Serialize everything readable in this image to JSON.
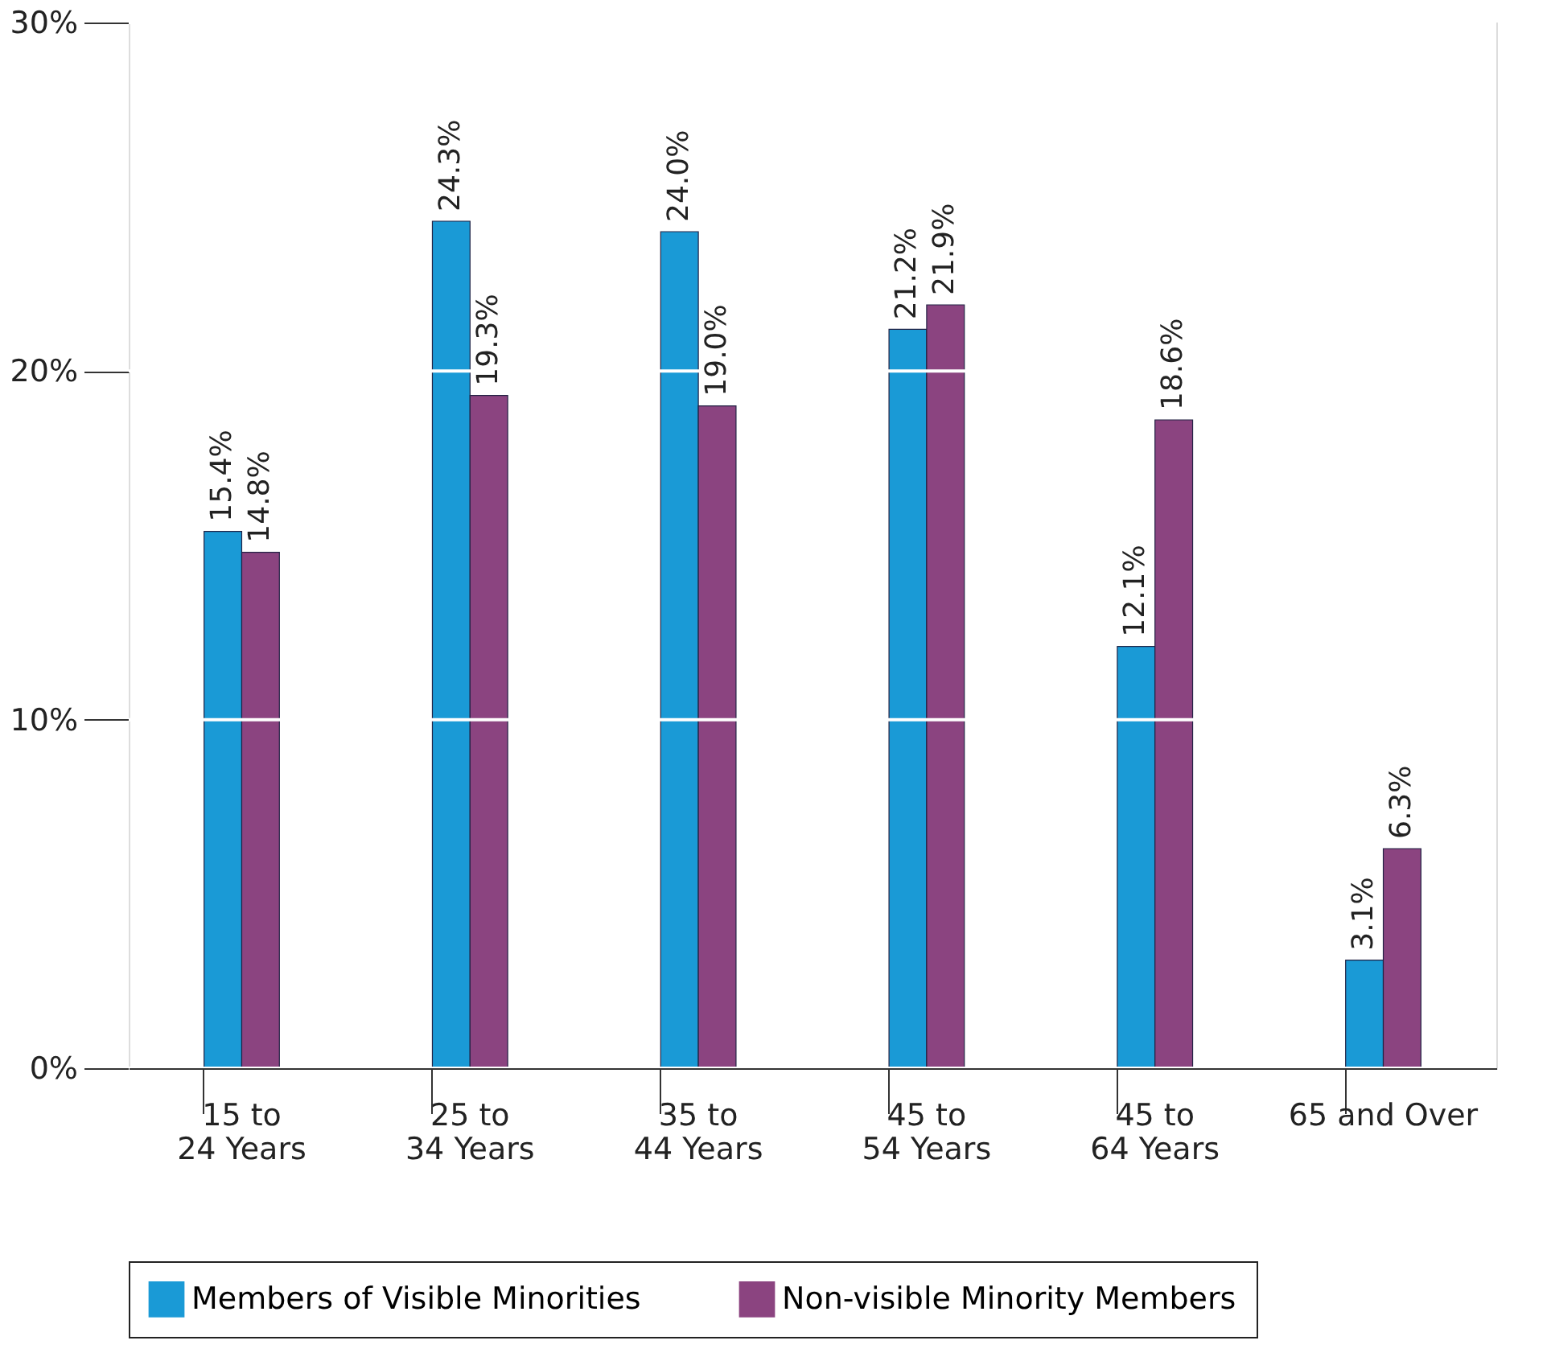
{
  "chart_data": {
    "type": "bar",
    "categories": [
      "15 to\n24 Years",
      "25 to\n34 Years",
      "35 to\n44 Years",
      "45 to\n54 Years",
      "45 to\n64 Years",
      "65 and Over"
    ],
    "series": [
      {
        "name": "Members of Visible Minorities",
        "color": "#1a9ad6",
        "values": [
          15.4,
          24.3,
          24.0,
          21.2,
          12.1,
          3.1
        ],
        "value_labels": [
          "15.4%",
          "24.3%",
          "24.0%",
          "21.2%",
          "12.1%",
          "3.1%"
        ]
      },
      {
        "name": "Non-visible Minority Members",
        "color": "#8b4480",
        "values": [
          14.8,
          19.3,
          19.0,
          21.9,
          18.6,
          6.3
        ],
        "value_labels": [
          "14.8%",
          "19.3%",
          "19.0%",
          "21.9%",
          "18.6%",
          "6.3%"
        ]
      }
    ],
    "ylim": [
      0,
      30
    ],
    "yticks": [
      {
        "value": 0,
        "label": "0%"
      },
      {
        "value": 10,
        "label": "10%"
      },
      {
        "value": 20,
        "label": "20%"
      },
      {
        "value": 30,
        "label": "30%"
      }
    ],
    "grid": "y",
    "legend": "bottom"
  }
}
